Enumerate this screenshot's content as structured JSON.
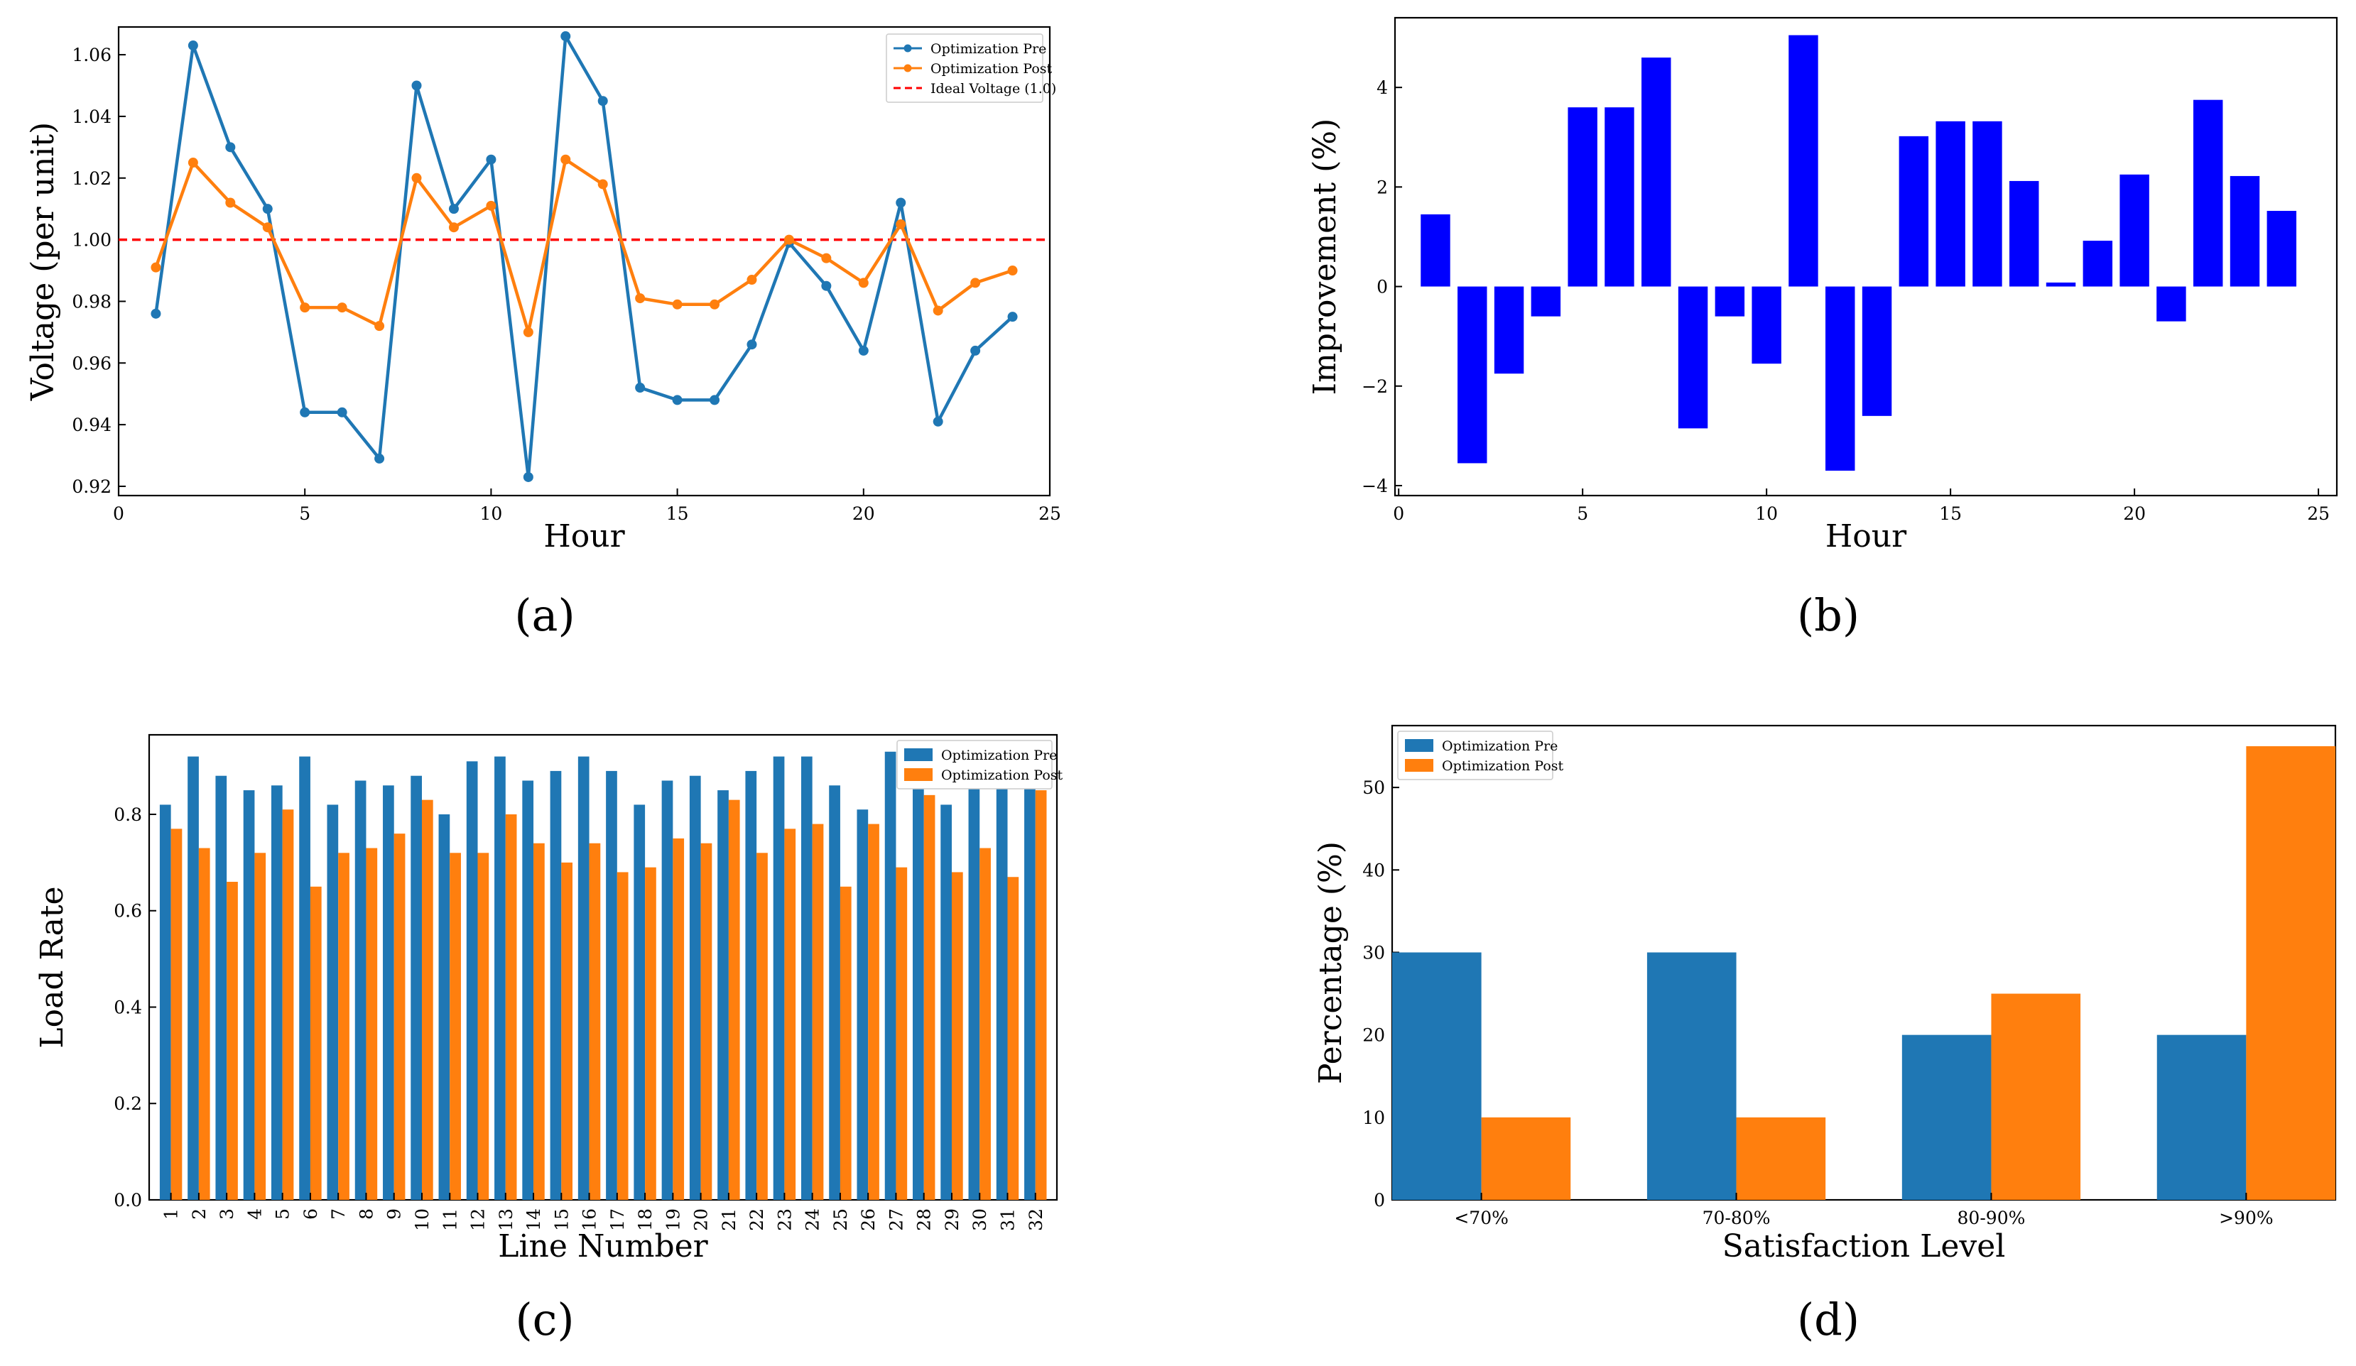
{
  "colors": {
    "pre": "#1f77b4",
    "post": "#ff7f0e",
    "ideal": "#ff0000",
    "improvement": "#0000ff"
  },
  "chart_data": [
    {
      "id": "a",
      "panel_label": "(a)",
      "type": "line",
      "xlabel": "Hour",
      "ylabel": "Voltage (per unit)",
      "xlim": [
        0,
        25
      ],
      "ylim": [
        0.917,
        1.069
      ],
      "xticks": [
        0,
        5,
        10,
        15,
        20,
        25
      ],
      "yticks": [
        0.92,
        0.94,
        0.96,
        0.98,
        1.0,
        1.02,
        1.04,
        1.06
      ],
      "ytick_labels": [
        "0.92",
        "0.94",
        "0.96",
        "0.98",
        "1.00",
        "1.02",
        "1.04",
        "1.06"
      ],
      "x": [
        1,
        2,
        3,
        4,
        5,
        6,
        7,
        8,
        9,
        10,
        11,
        12,
        13,
        14,
        15,
        16,
        17,
        18,
        19,
        20,
        21,
        22,
        23,
        24
      ],
      "series": [
        {
          "name": "Optimization Pre",
          "color_key": "pre",
          "values": [
            0.976,
            1.063,
            1.03,
            1.01,
            0.944,
            0.944,
            0.929,
            1.05,
            1.01,
            1.026,
            0.923,
            1.066,
            1.045,
            0.952,
            0.948,
            0.948,
            0.966,
            0.999,
            0.985,
            0.964,
            1.012,
            0.941,
            0.964,
            0.975
          ]
        },
        {
          "name": "Optimization Post",
          "color_key": "post",
          "values": [
            0.991,
            1.025,
            1.012,
            1.004,
            0.978,
            0.978,
            0.972,
            1.02,
            1.004,
            1.011,
            0.97,
            1.026,
            1.018,
            0.981,
            0.979,
            0.979,
            0.987,
            1.0,
            0.994,
            0.986,
            1.005,
            0.977,
            0.986,
            0.99
          ]
        }
      ],
      "reference_line": {
        "name": "Ideal Voltage (1.0)",
        "y": 1.0,
        "color_key": "ideal"
      },
      "legend": "top-right"
    },
    {
      "id": "b",
      "panel_label": "(b)",
      "type": "bar",
      "xlabel": "Hour",
      "ylabel": "Improvement (%)",
      "xlim": [
        -0.1,
        25.5
      ],
      "ylim": [
        -4.2,
        5.4
      ],
      "xticks": [
        0,
        5,
        10,
        15,
        20,
        25
      ],
      "yticks": [
        -4,
        -2,
        0,
        2,
        4
      ],
      "ytick_labels": [
        "−4",
        "−2",
        "0",
        "2",
        "4"
      ],
      "x": [
        1,
        2,
        3,
        4,
        5,
        6,
        7,
        8,
        9,
        10,
        11,
        12,
        13,
        14,
        15,
        16,
        17,
        18,
        19,
        20,
        21,
        22,
        23,
        24
      ],
      "values": [
        1.45,
        -3.55,
        -1.75,
        -0.6,
        3.6,
        3.6,
        4.6,
        -2.85,
        -0.6,
        -1.55,
        5.05,
        -3.7,
        -2.6,
        3.02,
        3.32,
        3.32,
        2.12,
        0.08,
        0.92,
        2.25,
        -0.7,
        3.75,
        2.22,
        1.52
      ],
      "color_key": "improvement"
    },
    {
      "id": "c",
      "panel_label": "(c)",
      "type": "bar",
      "xlabel": "Line Number",
      "ylabel": "Load Rate",
      "ylim": [
        0,
        0.965
      ],
      "yticks": [
        0.0,
        0.2,
        0.4,
        0.6,
        0.8
      ],
      "ytick_labels": [
        "0.0",
        "0.2",
        "0.4",
        "0.6",
        "0.8"
      ],
      "categories": [
        "1",
        "2",
        "3",
        "4",
        "5",
        "6",
        "7",
        "8",
        "9",
        "10",
        "11",
        "12",
        "13",
        "14",
        "15",
        "16",
        "17",
        "18",
        "19",
        "20",
        "21",
        "22",
        "23",
        "24",
        "25",
        "26",
        "27",
        "28",
        "29",
        "30",
        "31",
        "32"
      ],
      "series": [
        {
          "name": "Optimization Pre",
          "color_key": "pre",
          "values": [
            0.82,
            0.92,
            0.88,
            0.85,
            0.86,
            0.92,
            0.82,
            0.87,
            0.86,
            0.88,
            0.8,
            0.91,
            0.92,
            0.87,
            0.89,
            0.92,
            0.89,
            0.82,
            0.87,
            0.88,
            0.85,
            0.89,
            0.92,
            0.92,
            0.86,
            0.81,
            0.93,
            0.91,
            0.82,
            0.9,
            0.9,
            0.9
          ]
        },
        {
          "name": "Optimization Post",
          "color_key": "post",
          "values": [
            0.77,
            0.73,
            0.66,
            0.72,
            0.81,
            0.65,
            0.72,
            0.73,
            0.76,
            0.83,
            0.72,
            0.72,
            0.8,
            0.74,
            0.7,
            0.74,
            0.68,
            0.69,
            0.75,
            0.74,
            0.83,
            0.72,
            0.77,
            0.78,
            0.65,
            0.78,
            0.69,
            0.84,
            0.68,
            0.73,
            0.67,
            0.85
          ]
        }
      ],
      "legend": "top-right"
    },
    {
      "id": "d",
      "panel_label": "(d)",
      "type": "bar",
      "xlabel": "Satisfaction Level",
      "ylabel": "Percentage (%)",
      "ylim": [
        0,
        57.5
      ],
      "yticks": [
        0,
        10,
        20,
        30,
        40,
        50
      ],
      "ytick_labels": [
        "0",
        "10",
        "20",
        "30",
        "40",
        "50"
      ],
      "categories": [
        "<70%",
        "70-80%",
        "80-90%",
        ">90%"
      ],
      "series": [
        {
          "name": "Optimization Pre",
          "color_key": "pre",
          "values": [
            30,
            30,
            20,
            20
          ]
        },
        {
          "name": "Optimization Post",
          "color_key": "post",
          "values": [
            10,
            10,
            25,
            55
          ]
        }
      ],
      "legend": "top-left"
    }
  ]
}
